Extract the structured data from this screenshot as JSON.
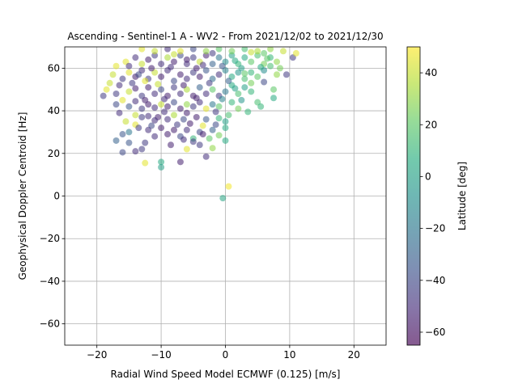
{
  "chart_data": {
    "type": "scatter",
    "title": "Ascending - Sentinel-1 A - WV2 - From 2021/12/02 to 2021/12/30",
    "xlabel": "Radial Wind Speed Model ECMWF (0.125) [m/s]",
    "ylabel": "Geophysical Doppler Centroid [Hz]",
    "xlim": [
      -25,
      25
    ],
    "ylim": [
      -70,
      70
    ],
    "xticks": [
      -20,
      -10,
      0,
      10,
      20
    ],
    "yticks": [
      -60,
      -40,
      -20,
      0,
      20,
      40,
      60
    ],
    "xtick_labels": [
      "−20",
      "−10",
      "0",
      "10",
      "20"
    ],
    "ytick_labels": [
      "−60",
      "−40",
      "−20",
      "0",
      "20",
      "40",
      "60"
    ],
    "grid": true,
    "colormap": "viridis",
    "point_alpha": 0.55,
    "colorbar": {
      "label": "Latitude [deg]",
      "range": [
        -65,
        50
      ],
      "ticks": [
        -60,
        -40,
        -20,
        0,
        20,
        40
      ],
      "tick_labels": [
        "−60",
        "−40",
        "−20",
        "0",
        "20",
        "40"
      ]
    },
    "points": [
      {
        "x": 0.5,
        "y": 4.5,
        "lat": 48
      },
      {
        "x": -0.4,
        "y": -1,
        "lat": 2
      },
      {
        "x": -12.5,
        "y": 15.5,
        "lat": 45
      },
      {
        "x": -10,
        "y": 16,
        "lat": 5
      },
      {
        "x": -10,
        "y": 13.5,
        "lat": 0
      },
      {
        "x": -7,
        "y": 16,
        "lat": -55
      },
      {
        "x": -16,
        "y": 20.5,
        "lat": -40
      },
      {
        "x": -14,
        "y": 21,
        "lat": -50
      },
      {
        "x": -13,
        "y": 22,
        "lat": -45
      },
      {
        "x": -6,
        "y": 22,
        "lat": 45
      },
      {
        "x": -2,
        "y": 22.5,
        "lat": 30
      },
      {
        "x": -17,
        "y": 26,
        "lat": -30
      },
      {
        "x": -15,
        "y": 25,
        "lat": -35
      },
      {
        "x": -12.5,
        "y": 25,
        "lat": -45
      },
      {
        "x": -8.5,
        "y": 24,
        "lat": -55
      },
      {
        "x": -4,
        "y": 24,
        "lat": -45
      },
      {
        "x": -3,
        "y": 18.5,
        "lat": -50
      },
      {
        "x": 0,
        "y": 26,
        "lat": 5
      },
      {
        "x": -16,
        "y": 29,
        "lat": -35
      },
      {
        "x": -15,
        "y": 30,
        "lat": -20
      },
      {
        "x": -11,
        "y": 28,
        "lat": -50
      },
      {
        "x": -9,
        "y": 29,
        "lat": -55
      },
      {
        "x": -7,
        "y": 28,
        "lat": -40
      },
      {
        "x": -5,
        "y": 27,
        "lat": 10
      },
      {
        "x": -2.5,
        "y": 27,
        "lat": 20
      },
      {
        "x": -1,
        "y": 28.5,
        "lat": 25
      },
      {
        "x": -15.5,
        "y": 35,
        "lat": 40
      },
      {
        "x": -14,
        "y": 33.5,
        "lat": 45
      },
      {
        "x": -13.5,
        "y": 32,
        "lat": -45
      },
      {
        "x": -12,
        "y": 31,
        "lat": -50
      },
      {
        "x": -11.5,
        "y": 33,
        "lat": -40
      },
      {
        "x": -10,
        "y": 32,
        "lat": -55
      },
      {
        "x": -8,
        "y": 31,
        "lat": -55
      },
      {
        "x": -6,
        "y": 31,
        "lat": -50
      },
      {
        "x": -4,
        "y": 30,
        "lat": -40
      },
      {
        "x": -2,
        "y": 31,
        "lat": -30
      },
      {
        "x": 0,
        "y": 32,
        "lat": 5
      },
      {
        "x": -14,
        "y": 38,
        "lat": 40
      },
      {
        "x": -13,
        "y": 37,
        "lat": -45
      },
      {
        "x": -12,
        "y": 37.5,
        "lat": -50
      },
      {
        "x": -10.5,
        "y": 37,
        "lat": -55
      },
      {
        "x": -9,
        "y": 36,
        "lat": -50
      },
      {
        "x": -8,
        "y": 38,
        "lat": 35
      },
      {
        "x": -6.5,
        "y": 36,
        "lat": -40
      },
      {
        "x": -4.5,
        "y": 37,
        "lat": -55
      },
      {
        "x": -3,
        "y": 36,
        "lat": -35
      },
      {
        "x": -1,
        "y": 36.5,
        "lat": 10
      },
      {
        "x": 0,
        "y": 35,
        "lat": 0
      },
      {
        "x": 0.5,
        "y": 38,
        "lat": 15
      },
      {
        "x": 3.5,
        "y": 39.5,
        "lat": 10
      },
      {
        "x": -19,
        "y": 47,
        "lat": -45
      },
      {
        "x": -17,
        "y": 43,
        "lat": -40
      },
      {
        "x": -16,
        "y": 45,
        "lat": 45
      },
      {
        "x": -15,
        "y": 42,
        "lat": -35
      },
      {
        "x": -14,
        "y": 44.5,
        "lat": -50
      },
      {
        "x": -13,
        "y": 41,
        "lat": -45
      },
      {
        "x": -12,
        "y": 43,
        "lat": -55
      },
      {
        "x": -11,
        "y": 41.5,
        "lat": -50
      },
      {
        "x": -10,
        "y": 43,
        "lat": 40
      },
      {
        "x": -9,
        "y": 42,
        "lat": -55
      },
      {
        "x": -8,
        "y": 44,
        "lat": -40
      },
      {
        "x": -7,
        "y": 41,
        "lat": -55
      },
      {
        "x": -6,
        "y": 43,
        "lat": 30
      },
      {
        "x": -5,
        "y": 42,
        "lat": -45
      },
      {
        "x": -4,
        "y": 44,
        "lat": -50
      },
      {
        "x": -3,
        "y": 41,
        "lat": 45
      },
      {
        "x": -2,
        "y": 43,
        "lat": -20
      },
      {
        "x": -1,
        "y": 42,
        "lat": 20
      },
      {
        "x": 1,
        "y": 44,
        "lat": 10
      },
      {
        "x": 2,
        "y": 41,
        "lat": 25
      },
      {
        "x": -18.5,
        "y": 50,
        "lat": 45
      },
      {
        "x": -17,
        "y": 48,
        "lat": -45
      },
      {
        "x": -16.5,
        "y": 52,
        "lat": -50
      },
      {
        "x": -15,
        "y": 49,
        "lat": 40
      },
      {
        "x": -14,
        "y": 50.5,
        "lat": -55
      },
      {
        "x": -13,
        "y": 47,
        "lat": -45
      },
      {
        "x": -12,
        "y": 51,
        "lat": -55
      },
      {
        "x": -11,
        "y": 48,
        "lat": -50
      },
      {
        "x": -10,
        "y": 50,
        "lat": -40
      },
      {
        "x": -9,
        "y": 47,
        "lat": -55
      },
      {
        "x": -8,
        "y": 51,
        "lat": -45
      },
      {
        "x": -7,
        "y": 48,
        "lat": -50
      },
      {
        "x": -6,
        "y": 50,
        "lat": 35
      },
      {
        "x": -5,
        "y": 47,
        "lat": -55
      },
      {
        "x": -4,
        "y": 51,
        "lat": -30
      },
      {
        "x": -3,
        "y": 48,
        "lat": -50
      },
      {
        "x": -2,
        "y": 50,
        "lat": 20
      },
      {
        "x": -1,
        "y": 47,
        "lat": -45
      },
      {
        "x": 0,
        "y": 49,
        "lat": -20
      },
      {
        "x": 1,
        "y": 52,
        "lat": 5
      },
      {
        "x": 2,
        "y": 48,
        "lat": 15
      },
      {
        "x": 3,
        "y": 51,
        "lat": 0
      },
      {
        "x": 4,
        "y": 49,
        "lat": 10
      },
      {
        "x": 6,
        "y": 53.5,
        "lat": -40
      },
      {
        "x": -17.5,
        "y": 57,
        "lat": 40
      },
      {
        "x": -16,
        "y": 55,
        "lat": -45
      },
      {
        "x": -15,
        "y": 58,
        "lat": 45
      },
      {
        "x": -14,
        "y": 56,
        "lat": -55
      },
      {
        "x": -13,
        "y": 59,
        "lat": -50
      },
      {
        "x": -12,
        "y": 55,
        "lat": -45
      },
      {
        "x": -11,
        "y": 58,
        "lat": 40
      },
      {
        "x": -10,
        "y": 56,
        "lat": -55
      },
      {
        "x": -9,
        "y": 59,
        "lat": -50
      },
      {
        "x": -8,
        "y": 54,
        "lat": -40
      },
      {
        "x": -7,
        "y": 57,
        "lat": -55
      },
      {
        "x": -6,
        "y": 55,
        "lat": -50
      },
      {
        "x": -5,
        "y": 58,
        "lat": -45
      },
      {
        "x": -4,
        "y": 56,
        "lat": -55
      },
      {
        "x": -3,
        "y": 59,
        "lat": -35
      },
      {
        "x": -2,
        "y": 55,
        "lat": -25
      },
      {
        "x": -1,
        "y": 57,
        "lat": -50
      },
      {
        "x": 0,
        "y": 59,
        "lat": -15
      },
      {
        "x": 1,
        "y": 56,
        "lat": 5
      },
      {
        "x": 2,
        "y": 58,
        "lat": -5
      },
      {
        "x": 3,
        "y": 55,
        "lat": 15
      },
      {
        "x": 4,
        "y": 58,
        "lat": 10
      },
      {
        "x": 5,
        "y": 56,
        "lat": 20
      },
      {
        "x": 6,
        "y": 59,
        "lat": -10
      },
      {
        "x": 8,
        "y": 57,
        "lat": 30
      },
      {
        "x": 9.5,
        "y": 57,
        "lat": -45
      },
      {
        "x": -15.5,
        "y": 63,
        "lat": 45
      },
      {
        "x": -14,
        "y": 65,
        "lat": -50
      },
      {
        "x": -13,
        "y": 62,
        "lat": 40
      },
      {
        "x": -12,
        "y": 64,
        "lat": -55
      },
      {
        "x": -11,
        "y": 66,
        "lat": -45
      },
      {
        "x": -10,
        "y": 62,
        "lat": -50
      },
      {
        "x": -9,
        "y": 65,
        "lat": 35
      },
      {
        "x": -8,
        "y": 63,
        "lat": -55
      },
      {
        "x": -7,
        "y": 66,
        "lat": -40
      },
      {
        "x": -6,
        "y": 62,
        "lat": -50
      },
      {
        "x": -5,
        "y": 65,
        "lat": -45
      },
      {
        "x": -4,
        "y": 63,
        "lat": 40
      },
      {
        "x": -3,
        "y": 66,
        "lat": -55
      },
      {
        "x": -2,
        "y": 62,
        "lat": -30
      },
      {
        "x": -1,
        "y": 65,
        "lat": -20
      },
      {
        "x": 0,
        "y": 63,
        "lat": -10
      },
      {
        "x": 1,
        "y": 66,
        "lat": 0
      },
      {
        "x": 2,
        "y": 62,
        "lat": 10
      },
      {
        "x": 3,
        "y": 65,
        "lat": 5
      },
      {
        "x": 4,
        "y": 63,
        "lat": 20
      },
      {
        "x": 5,
        "y": 66,
        "lat": 15
      },
      {
        "x": 6,
        "y": 62,
        "lat": 25
      },
      {
        "x": 7,
        "y": 65,
        "lat": 10
      },
      {
        "x": 8,
        "y": 63,
        "lat": 30
      },
      {
        "x": 10.5,
        "y": 65,
        "lat": -45
      },
      {
        "x": -13,
        "y": 69,
        "lat": 45
      },
      {
        "x": -11,
        "y": 68,
        "lat": 40
      },
      {
        "x": -9,
        "y": 69,
        "lat": -50
      },
      {
        "x": -7,
        "y": 68,
        "lat": 45
      },
      {
        "x": -5,
        "y": 69,
        "lat": -40
      },
      {
        "x": -3,
        "y": 68,
        "lat": 30
      },
      {
        "x": -1,
        "y": 69,
        "lat": 20
      },
      {
        "x": 1,
        "y": 68,
        "lat": 25
      },
      {
        "x": 3,
        "y": 69,
        "lat": 15
      },
      {
        "x": 5,
        "y": 68,
        "lat": 35
      },
      {
        "x": 7,
        "y": 69,
        "lat": 30
      },
      {
        "x": 9,
        "y": 68,
        "lat": 40
      },
      {
        "x": 11,
        "y": 67,
        "lat": 45
      },
      {
        "x": 7.5,
        "y": 46,
        "lat": 5
      },
      {
        "x": 5,
        "y": 44,
        "lat": 15
      },
      {
        "x": 5.5,
        "y": 42,
        "lat": 10
      },
      {
        "x": 7.5,
        "y": 50,
        "lat": 20
      },
      {
        "x": 4,
        "y": 53,
        "lat": 25
      },
      {
        "x": 2.5,
        "y": 45,
        "lat": -5
      },
      {
        "x": -7.5,
        "y": 33.5,
        "lat": -45
      },
      {
        "x": -5.5,
        "y": 34,
        "lat": -55
      },
      {
        "x": -3.5,
        "y": 33,
        "lat": 45
      },
      {
        "x": -9.5,
        "y": 39.5,
        "lat": -50
      },
      {
        "x": -12.5,
        "y": 54,
        "lat": 45
      },
      {
        "x": -10.5,
        "y": 52.5,
        "lat": 40
      },
      {
        "x": -6.5,
        "y": 52,
        "lat": -55
      },
      {
        "x": -2.5,
        "y": 53,
        "lat": -45
      },
      {
        "x": 0.5,
        "y": 54,
        "lat": -30
      },
      {
        "x": -8.5,
        "y": 60.5,
        "lat": -50
      },
      {
        "x": -4.5,
        "y": 60,
        "lat": -55
      },
      {
        "x": -0.5,
        "y": 61,
        "lat": -35
      },
      {
        "x": 2.5,
        "y": 60,
        "lat": 0
      },
      {
        "x": 5.5,
        "y": 60.5,
        "lat": 5
      },
      {
        "x": -16.5,
        "y": 39,
        "lat": -50
      },
      {
        "x": -11,
        "y": 35.5,
        "lat": -50
      },
      {
        "x": -6,
        "y": 39,
        "lat": -55
      },
      {
        "x": -1.5,
        "y": 39.5,
        "lat": -45
      },
      {
        "x": -15,
        "y": 61,
        "lat": -50
      },
      {
        "x": -17,
        "y": 61,
        "lat": 45
      },
      {
        "x": -18,
        "y": 53,
        "lat": 40
      },
      {
        "x": -8,
        "y": 66.5,
        "lat": 40
      },
      {
        "x": -2,
        "y": 67,
        "lat": -45
      },
      {
        "x": 4,
        "y": 67.5,
        "lat": 40
      },
      {
        "x": 6,
        "y": 67,
        "lat": 20
      },
      {
        "x": 3,
        "y": 57.5,
        "lat": 20
      },
      {
        "x": 1.5,
        "y": 50.5,
        "lat": 0
      },
      {
        "x": -0.5,
        "y": 45.5,
        "lat": -15
      },
      {
        "x": -4.5,
        "y": 46,
        "lat": -55
      },
      {
        "x": -9.5,
        "y": 45.5,
        "lat": -50
      },
      {
        "x": -12.5,
        "y": 45,
        "lat": -55
      },
      {
        "x": -14.5,
        "y": 53,
        "lat": -45
      },
      {
        "x": -13.5,
        "y": 57,
        "lat": -40
      },
      {
        "x": -11.5,
        "y": 60,
        "lat": -55
      },
      {
        "x": -6,
        "y": 64,
        "lat": -55
      },
      {
        "x": -3.5,
        "y": 61.5,
        "lat": -50
      },
      {
        "x": 1.5,
        "y": 63.5,
        "lat": 5
      },
      {
        "x": 7,
        "y": 61,
        "lat": 15
      },
      {
        "x": 8.5,
        "y": 60,
        "lat": 25
      },
      {
        "x": 6.5,
        "y": 64.5,
        "lat": 20
      },
      {
        "x": -5,
        "y": 25.5,
        "lat": -45
      },
      {
        "x": -3.5,
        "y": 29,
        "lat": -55
      },
      {
        "x": -6.5,
        "y": 26.5,
        "lat": -50
      },
      {
        "x": -1.5,
        "y": 33.5,
        "lat": -40
      }
    ]
  }
}
